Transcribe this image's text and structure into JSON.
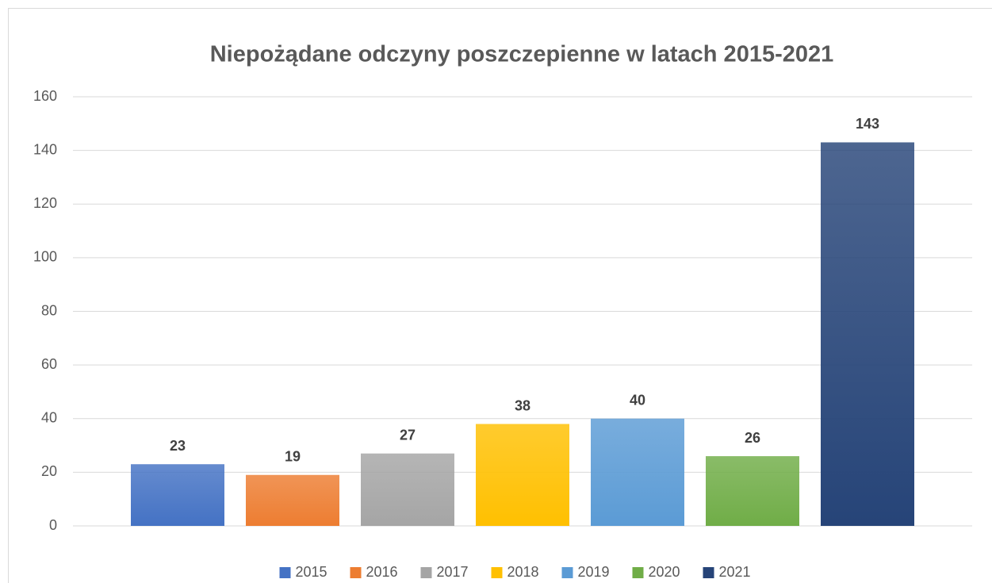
{
  "chart_data": {
    "type": "bar",
    "title": "Niepożądane odczyny poszczepienne w latach 2015-2021",
    "series": [
      {
        "name": "2015",
        "color": "#4472c4",
        "values": [
          23
        ]
      },
      {
        "name": "2016",
        "color": "#ed7d31",
        "values": [
          19
        ]
      },
      {
        "name": "2017",
        "color": "#a5a5a5",
        "values": [
          27
        ]
      },
      {
        "name": "2018",
        "color": "#ffc000",
        "values": [
          38
        ]
      },
      {
        "name": "2019",
        "color": "#5b9bd5",
        "values": [
          40
        ]
      },
      {
        "name": "2020",
        "color": "#70ad47",
        "values": [
          26
        ]
      },
      {
        "name": "2021",
        "color": "#264478",
        "values": [
          143
        ]
      }
    ],
    "ylim": [
      0,
      160
    ],
    "yticks": [
      0,
      20,
      40,
      60,
      80,
      100,
      120,
      140,
      160
    ],
    "grid": true,
    "legend": "bottom"
  }
}
